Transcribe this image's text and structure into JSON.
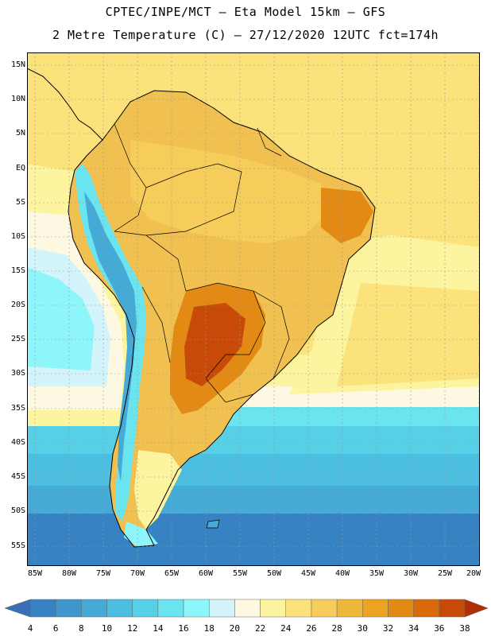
{
  "title_line1": "CPTEC/INPE/MCT –  Eta Model 15km – GFS",
  "title_line2": "2 Metre Temperature (C) – 27/12/2020 12UTC fct=174h",
  "lat_labels": [
    "15N",
    "10N",
    "5N",
    "EQ",
    "5S",
    "10S",
    "15S",
    "20S",
    "25S",
    "30S",
    "35S",
    "40S",
    "45S",
    "50S",
    "55S"
  ],
  "lon_labels": [
    "85W",
    "80W",
    "75W",
    "70W",
    "65W",
    "60W",
    "55W",
    "50W",
    "45W",
    "40W",
    "35W",
    "30W",
    "25W",
    "20W"
  ],
  "colorbar": {
    "labels": [
      "4",
      "6",
      "8",
      "10",
      "12",
      "14",
      "16",
      "18",
      "20",
      "22",
      "24",
      "26",
      "28",
      "30",
      "32",
      "34",
      "36",
      "38"
    ],
    "colors": [
      "#3a6fb8",
      "#3682c2",
      "#3e96cc",
      "#46aad6",
      "#4cbedf",
      "#56d0e6",
      "#6ae4ee",
      "#8ef6fa",
      "#d2f4fa",
      "#fdf8e1",
      "#fdf4a0",
      "#fce27a",
      "#f6cc5a",
      "#eeb838",
      "#eca420",
      "#e38a14",
      "#d96a0c",
      "#c84a08",
      "#b22f04"
    ]
  }
}
